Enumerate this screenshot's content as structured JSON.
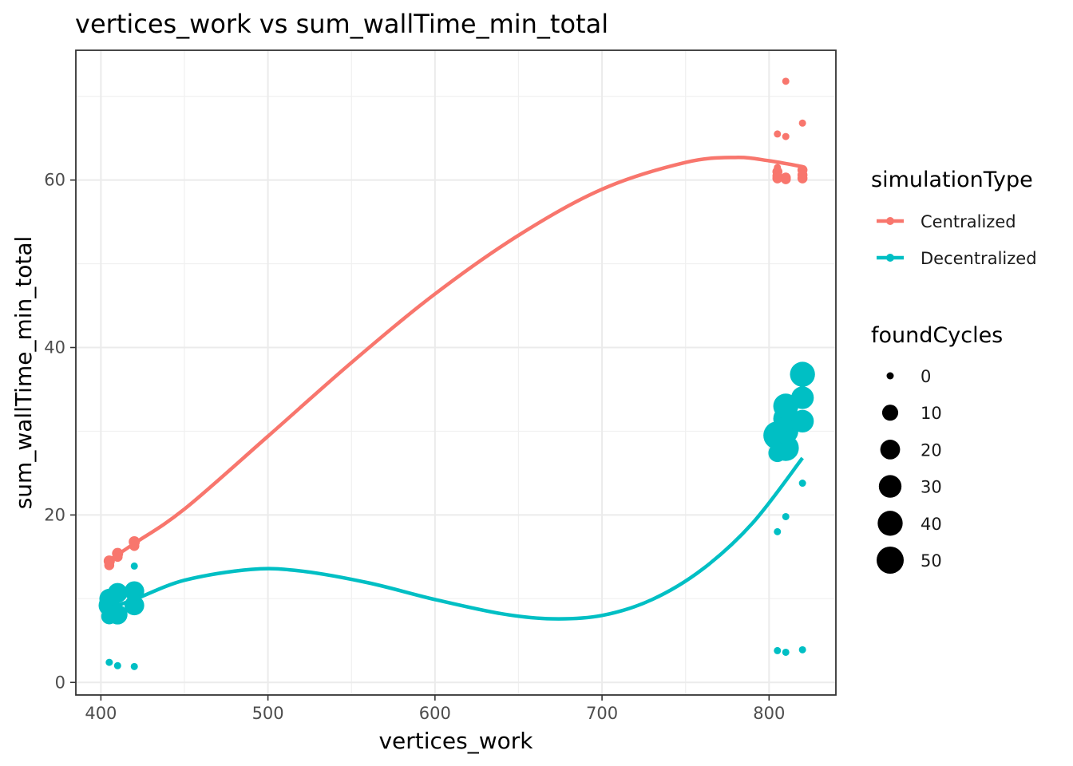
{
  "chart_data": {
    "type": "scatter",
    "title": "vertices_work  vs  sum_wallTime_min_total",
    "xlabel": "vertices_work",
    "ylabel": "sum_wallTime_min_total",
    "xlim": [
      385,
      840
    ],
    "ylim": [
      -1.5,
      75.5
    ],
    "x_ticks": [
      400,
      500,
      600,
      700,
      800
    ],
    "y_ticks": [
      0,
      20,
      40,
      60
    ],
    "grid": true,
    "legend_position": "right",
    "color_legend": {
      "title": "simulationType",
      "entries": [
        {
          "label": "Centralized",
          "color": "#F8766D"
        },
        {
          "label": "Decentralized",
          "color": "#00BFC4"
        }
      ]
    },
    "size_legend": {
      "title": "foundCycles",
      "values": [
        0,
        10,
        20,
        30,
        40,
        50
      ]
    },
    "series": [
      {
        "name": "Centralized",
        "color": "#F8766D",
        "points": [
          {
            "x": 405,
            "y": 14.0,
            "size": 1
          },
          {
            "x": 405,
            "y": 14.5,
            "size": 2
          },
          {
            "x": 410,
            "y": 15.0,
            "size": 1
          },
          {
            "x": 410,
            "y": 15.4,
            "size": 2
          },
          {
            "x": 420,
            "y": 16.3,
            "size": 1
          },
          {
            "x": 420,
            "y": 16.8,
            "size": 2
          },
          {
            "x": 805,
            "y": 65.5,
            "size": 0
          },
          {
            "x": 805,
            "y": 61.5,
            "size": 0
          },
          {
            "x": 805,
            "y": 61.0,
            "size": 1
          },
          {
            "x": 805,
            "y": 60.5,
            "size": 1
          },
          {
            "x": 805,
            "y": 60.2,
            "size": 1
          },
          {
            "x": 810,
            "y": 71.8,
            "size": 0
          },
          {
            "x": 810,
            "y": 65.2,
            "size": 0
          },
          {
            "x": 810,
            "y": 60.3,
            "size": 1
          },
          {
            "x": 810,
            "y": 60.1,
            "size": 1
          },
          {
            "x": 820,
            "y": 66.8,
            "size": 0
          },
          {
            "x": 820,
            "y": 61.2,
            "size": 1
          },
          {
            "x": 820,
            "y": 60.6,
            "size": 1
          },
          {
            "x": 820,
            "y": 60.2,
            "size": 1
          }
        ],
        "trend": [
          {
            "x": 405,
            "y": 14.6
          },
          {
            "x": 420,
            "y": 16.6
          },
          {
            "x": 450,
            "y": 20.7
          },
          {
            "x": 500,
            "y": 29.4
          },
          {
            "x": 550,
            "y": 38.2
          },
          {
            "x": 600,
            "y": 46.4
          },
          {
            "x": 650,
            "y": 53.4
          },
          {
            "x": 700,
            "y": 58.9
          },
          {
            "x": 750,
            "y": 62.1
          },
          {
            "x": 780,
            "y": 62.7
          },
          {
            "x": 800,
            "y": 62.3
          },
          {
            "x": 820,
            "y": 61.6
          }
        ]
      },
      {
        "name": "Decentralized",
        "color": "#00BFC4",
        "points": [
          {
            "x": 405,
            "y": 2.4,
            "size": 0
          },
          {
            "x": 410,
            "y": 2.0,
            "size": 0
          },
          {
            "x": 420,
            "y": 1.9,
            "size": 0
          },
          {
            "x": 420,
            "y": 13.9,
            "size": 0
          },
          {
            "x": 405,
            "y": 7.9,
            "size": 10
          },
          {
            "x": 405,
            "y": 9.2,
            "size": 25
          },
          {
            "x": 405,
            "y": 10.0,
            "size": 20
          },
          {
            "x": 410,
            "y": 8.1,
            "size": 20
          },
          {
            "x": 410,
            "y": 10.7,
            "size": 20
          },
          {
            "x": 420,
            "y": 9.2,
            "size": 20
          },
          {
            "x": 420,
            "y": 10.9,
            "size": 20
          },
          {
            "x": 805,
            "y": 3.8,
            "size": 0
          },
          {
            "x": 810,
            "y": 3.6,
            "size": 0
          },
          {
            "x": 820,
            "y": 3.9,
            "size": 0
          },
          {
            "x": 805,
            "y": 18.0,
            "size": 0
          },
          {
            "x": 810,
            "y": 19.8,
            "size": 0
          },
          {
            "x": 820,
            "y": 23.8,
            "size": 0
          },
          {
            "x": 805,
            "y": 27.4,
            "size": 15
          },
          {
            "x": 805,
            "y": 29.5,
            "size": 55
          },
          {
            "x": 810,
            "y": 28.0,
            "size": 45
          },
          {
            "x": 810,
            "y": 30.0,
            "size": 40
          },
          {
            "x": 810,
            "y": 31.5,
            "size": 40
          },
          {
            "x": 810,
            "y": 33.0,
            "size": 40
          },
          {
            "x": 820,
            "y": 31.2,
            "size": 30
          },
          {
            "x": 820,
            "y": 34.0,
            "size": 30
          },
          {
            "x": 820,
            "y": 36.8,
            "size": 40
          }
        ],
        "trend": [
          {
            "x": 405,
            "y": 8.9
          },
          {
            "x": 420,
            "y": 9.9
          },
          {
            "x": 450,
            "y": 12.2
          },
          {
            "x": 490,
            "y": 13.5
          },
          {
            "x": 520,
            "y": 13.3
          },
          {
            "x": 560,
            "y": 11.9
          },
          {
            "x": 600,
            "y": 9.9
          },
          {
            "x": 640,
            "y": 8.2
          },
          {
            "x": 670,
            "y": 7.6
          },
          {
            "x": 700,
            "y": 8.0
          },
          {
            "x": 730,
            "y": 9.9
          },
          {
            "x": 760,
            "y": 13.5
          },
          {
            "x": 790,
            "y": 19.0
          },
          {
            "x": 820,
            "y": 26.8
          }
        ]
      }
    ]
  }
}
